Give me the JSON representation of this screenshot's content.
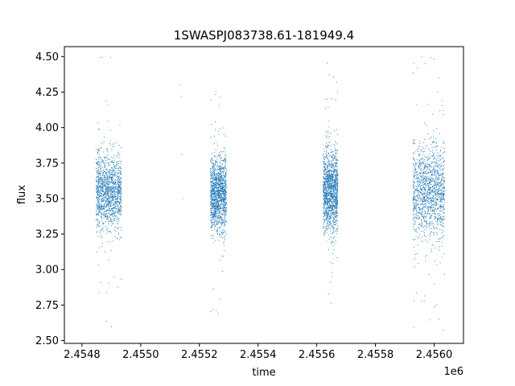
{
  "chart_data": {
    "type": "scatter",
    "title": "1SWASPJ083738.61-181949.4",
    "xlabel": "time",
    "ylabel": "flux",
    "x_offset_label": "1e6",
    "xlim": [
      2.45474,
      2.4561
    ],
    "ylim": [
      2.48,
      4.57
    ],
    "x_ticks": [
      2.4548,
      2.455,
      2.4552,
      2.4554,
      2.4556,
      2.4558,
      2.456
    ],
    "x_tick_labels": [
      "2.4548",
      "2.4550",
      "2.4552",
      "2.4554",
      "2.4556",
      "2.4558",
      "2.4560"
    ],
    "y_ticks": [
      2.5,
      2.75,
      3.0,
      3.25,
      3.5,
      3.75,
      4.0,
      4.25,
      4.5
    ],
    "y_tick_labels": [
      "2.50",
      "2.75",
      "3.00",
      "3.25",
      "3.50",
      "3.75",
      "4.00",
      "4.25",
      "4.50"
    ],
    "marker_color": "#1f77b4",
    "grid": false,
    "clusters": [
      {
        "x_start": 2.454848,
        "x_end": 2.454934,
        "center": 3.55,
        "spread": 0.13
      },
      {
        "x_start": 2.455238,
        "x_end": 2.455292,
        "center": 3.53,
        "spread": 0.13
      },
      {
        "x_start": 2.455622,
        "x_end": 2.455672,
        "center": 3.55,
        "spread": 0.14
      },
      {
        "x_start": 2.455928,
        "x_end": 2.456036,
        "center": 3.55,
        "spread": 0.16
      }
    ],
    "isolated_points": [
      {
        "x": 2.455135,
        "y": 4.3
      },
      {
        "x": 2.455138,
        "y": 4.22
      },
      {
        "x": 2.45514,
        "y": 3.81
      },
      {
        "x": 2.455143,
        "y": 3.5
      }
    ]
  }
}
